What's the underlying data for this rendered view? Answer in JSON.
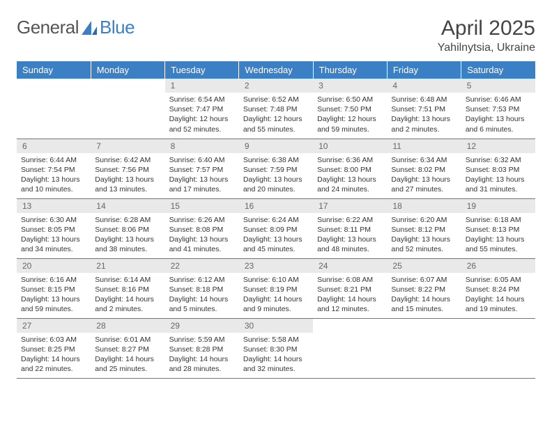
{
  "brand": {
    "part1": "General",
    "part2": "Blue"
  },
  "title": "April 2025",
  "location": "Yahilnytsia, Ukraine",
  "columns": [
    "Sunday",
    "Monday",
    "Tuesday",
    "Wednesday",
    "Thursday",
    "Friday",
    "Saturday"
  ],
  "colors": {
    "header_bg": "#3b7fc4",
    "header_text": "#ffffff",
    "daynum_bg": "#e9e9e9",
    "daynum_text": "#666666",
    "body_text": "#333333",
    "row_border": "#3b7fc4",
    "page_bg": "#ffffff"
  },
  "weeks": [
    [
      {
        "day": "",
        "sunrise": "",
        "sunset": "",
        "daylight": ""
      },
      {
        "day": "",
        "sunrise": "",
        "sunset": "",
        "daylight": ""
      },
      {
        "day": "1",
        "sunrise": "Sunrise: 6:54 AM",
        "sunset": "Sunset: 7:47 PM",
        "daylight": "Daylight: 12 hours and 52 minutes."
      },
      {
        "day": "2",
        "sunrise": "Sunrise: 6:52 AM",
        "sunset": "Sunset: 7:48 PM",
        "daylight": "Daylight: 12 hours and 55 minutes."
      },
      {
        "day": "3",
        "sunrise": "Sunrise: 6:50 AM",
        "sunset": "Sunset: 7:50 PM",
        "daylight": "Daylight: 12 hours and 59 minutes."
      },
      {
        "day": "4",
        "sunrise": "Sunrise: 6:48 AM",
        "sunset": "Sunset: 7:51 PM",
        "daylight": "Daylight: 13 hours and 2 minutes."
      },
      {
        "day": "5",
        "sunrise": "Sunrise: 6:46 AM",
        "sunset": "Sunset: 7:53 PM",
        "daylight": "Daylight: 13 hours and 6 minutes."
      }
    ],
    [
      {
        "day": "6",
        "sunrise": "Sunrise: 6:44 AM",
        "sunset": "Sunset: 7:54 PM",
        "daylight": "Daylight: 13 hours and 10 minutes."
      },
      {
        "day": "7",
        "sunrise": "Sunrise: 6:42 AM",
        "sunset": "Sunset: 7:56 PM",
        "daylight": "Daylight: 13 hours and 13 minutes."
      },
      {
        "day": "8",
        "sunrise": "Sunrise: 6:40 AM",
        "sunset": "Sunset: 7:57 PM",
        "daylight": "Daylight: 13 hours and 17 minutes."
      },
      {
        "day": "9",
        "sunrise": "Sunrise: 6:38 AM",
        "sunset": "Sunset: 7:59 PM",
        "daylight": "Daylight: 13 hours and 20 minutes."
      },
      {
        "day": "10",
        "sunrise": "Sunrise: 6:36 AM",
        "sunset": "Sunset: 8:00 PM",
        "daylight": "Daylight: 13 hours and 24 minutes."
      },
      {
        "day": "11",
        "sunrise": "Sunrise: 6:34 AM",
        "sunset": "Sunset: 8:02 PM",
        "daylight": "Daylight: 13 hours and 27 minutes."
      },
      {
        "day": "12",
        "sunrise": "Sunrise: 6:32 AM",
        "sunset": "Sunset: 8:03 PM",
        "daylight": "Daylight: 13 hours and 31 minutes."
      }
    ],
    [
      {
        "day": "13",
        "sunrise": "Sunrise: 6:30 AM",
        "sunset": "Sunset: 8:05 PM",
        "daylight": "Daylight: 13 hours and 34 minutes."
      },
      {
        "day": "14",
        "sunrise": "Sunrise: 6:28 AM",
        "sunset": "Sunset: 8:06 PM",
        "daylight": "Daylight: 13 hours and 38 minutes."
      },
      {
        "day": "15",
        "sunrise": "Sunrise: 6:26 AM",
        "sunset": "Sunset: 8:08 PM",
        "daylight": "Daylight: 13 hours and 41 minutes."
      },
      {
        "day": "16",
        "sunrise": "Sunrise: 6:24 AM",
        "sunset": "Sunset: 8:09 PM",
        "daylight": "Daylight: 13 hours and 45 minutes."
      },
      {
        "day": "17",
        "sunrise": "Sunrise: 6:22 AM",
        "sunset": "Sunset: 8:11 PM",
        "daylight": "Daylight: 13 hours and 48 minutes."
      },
      {
        "day": "18",
        "sunrise": "Sunrise: 6:20 AM",
        "sunset": "Sunset: 8:12 PM",
        "daylight": "Daylight: 13 hours and 52 minutes."
      },
      {
        "day": "19",
        "sunrise": "Sunrise: 6:18 AM",
        "sunset": "Sunset: 8:13 PM",
        "daylight": "Daylight: 13 hours and 55 minutes."
      }
    ],
    [
      {
        "day": "20",
        "sunrise": "Sunrise: 6:16 AM",
        "sunset": "Sunset: 8:15 PM",
        "daylight": "Daylight: 13 hours and 59 minutes."
      },
      {
        "day": "21",
        "sunrise": "Sunrise: 6:14 AM",
        "sunset": "Sunset: 8:16 PM",
        "daylight": "Daylight: 14 hours and 2 minutes."
      },
      {
        "day": "22",
        "sunrise": "Sunrise: 6:12 AM",
        "sunset": "Sunset: 8:18 PM",
        "daylight": "Daylight: 14 hours and 5 minutes."
      },
      {
        "day": "23",
        "sunrise": "Sunrise: 6:10 AM",
        "sunset": "Sunset: 8:19 PM",
        "daylight": "Daylight: 14 hours and 9 minutes."
      },
      {
        "day": "24",
        "sunrise": "Sunrise: 6:08 AM",
        "sunset": "Sunset: 8:21 PM",
        "daylight": "Daylight: 14 hours and 12 minutes."
      },
      {
        "day": "25",
        "sunrise": "Sunrise: 6:07 AM",
        "sunset": "Sunset: 8:22 PM",
        "daylight": "Daylight: 14 hours and 15 minutes."
      },
      {
        "day": "26",
        "sunrise": "Sunrise: 6:05 AM",
        "sunset": "Sunset: 8:24 PM",
        "daylight": "Daylight: 14 hours and 19 minutes."
      }
    ],
    [
      {
        "day": "27",
        "sunrise": "Sunrise: 6:03 AM",
        "sunset": "Sunset: 8:25 PM",
        "daylight": "Daylight: 14 hours and 22 minutes."
      },
      {
        "day": "28",
        "sunrise": "Sunrise: 6:01 AM",
        "sunset": "Sunset: 8:27 PM",
        "daylight": "Daylight: 14 hours and 25 minutes."
      },
      {
        "day": "29",
        "sunrise": "Sunrise: 5:59 AM",
        "sunset": "Sunset: 8:28 PM",
        "daylight": "Daylight: 14 hours and 28 minutes."
      },
      {
        "day": "30",
        "sunrise": "Sunrise: 5:58 AM",
        "sunset": "Sunset: 8:30 PM",
        "daylight": "Daylight: 14 hours and 32 minutes."
      },
      {
        "day": "",
        "sunrise": "",
        "sunset": "",
        "daylight": ""
      },
      {
        "day": "",
        "sunrise": "",
        "sunset": "",
        "daylight": ""
      },
      {
        "day": "",
        "sunrise": "",
        "sunset": "",
        "daylight": ""
      }
    ]
  ]
}
